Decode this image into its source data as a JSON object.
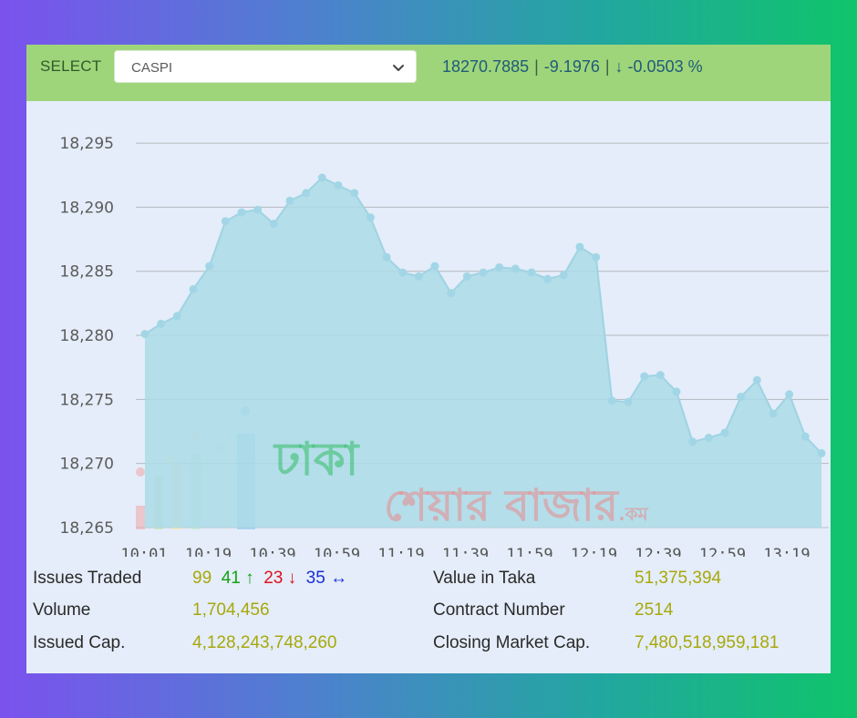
{
  "header": {
    "select_label": "SELECT",
    "select_value": "CASPI",
    "index_value": "18270.7885",
    "change": "-9.1976",
    "change_pct": "↓ -0.0503 %"
  },
  "watermark": {
    "line1": "ঢাকা",
    "line2": "শেয়ার বাজার",
    "suffix": ".কম"
  },
  "chart_data": {
    "type": "area",
    "ylim": [
      18265,
      18296
    ],
    "yticks": [
      18265,
      18270,
      18275,
      18280,
      18285,
      18290,
      18295
    ],
    "ytick_labels": [
      "18,265",
      "18,270",
      "18,275",
      "18,280",
      "18,285",
      "18,290",
      "18,295"
    ],
    "xtick_labels": [
      "10:01",
      "10:19",
      "10:39",
      "10:59",
      "11:19",
      "11:39",
      "11:59",
      "12:19",
      "12:39",
      "12:59",
      "13:19"
    ],
    "grid": true,
    "values": [
      18280.1,
      18280.9,
      18281.5,
      18283.6,
      18285.4,
      18288.9,
      18289.6,
      18289.8,
      18288.7,
      18290.5,
      18291.1,
      18292.3,
      18291.7,
      18291.1,
      18289.2,
      18286.1,
      18284.9,
      18284.6,
      18285.4,
      18283.3,
      18284.6,
      18284.9,
      18285.3,
      18285.2,
      18284.9,
      18284.4,
      18284.7,
      18286.9,
      18286.1,
      18274.9,
      18274.8,
      18276.8,
      18276.9,
      18275.6,
      18271.7,
      18272.0,
      18272.4,
      18275.2,
      18276.5,
      18273.9,
      18275.4,
      18272.1,
      18270.8
    ],
    "color": "#abdbe8"
  },
  "stats": {
    "issues_traded_label": "Issues Traded",
    "issues_traded": "99",
    "advanced": "41",
    "declined": "23",
    "unchanged": "35",
    "volume_label": "Volume",
    "volume": "1,704,456",
    "issued_cap_label": "Issued Cap.",
    "issued_cap": "4,128,243,748,260",
    "value_taka_label": "Value in Taka",
    "value_taka": "51,375,394",
    "contract_label": "Contract Number",
    "contract": "2514",
    "closing_cap_label": "Closing Market Cap.",
    "closing_cap": "7,480,518,959,181"
  }
}
